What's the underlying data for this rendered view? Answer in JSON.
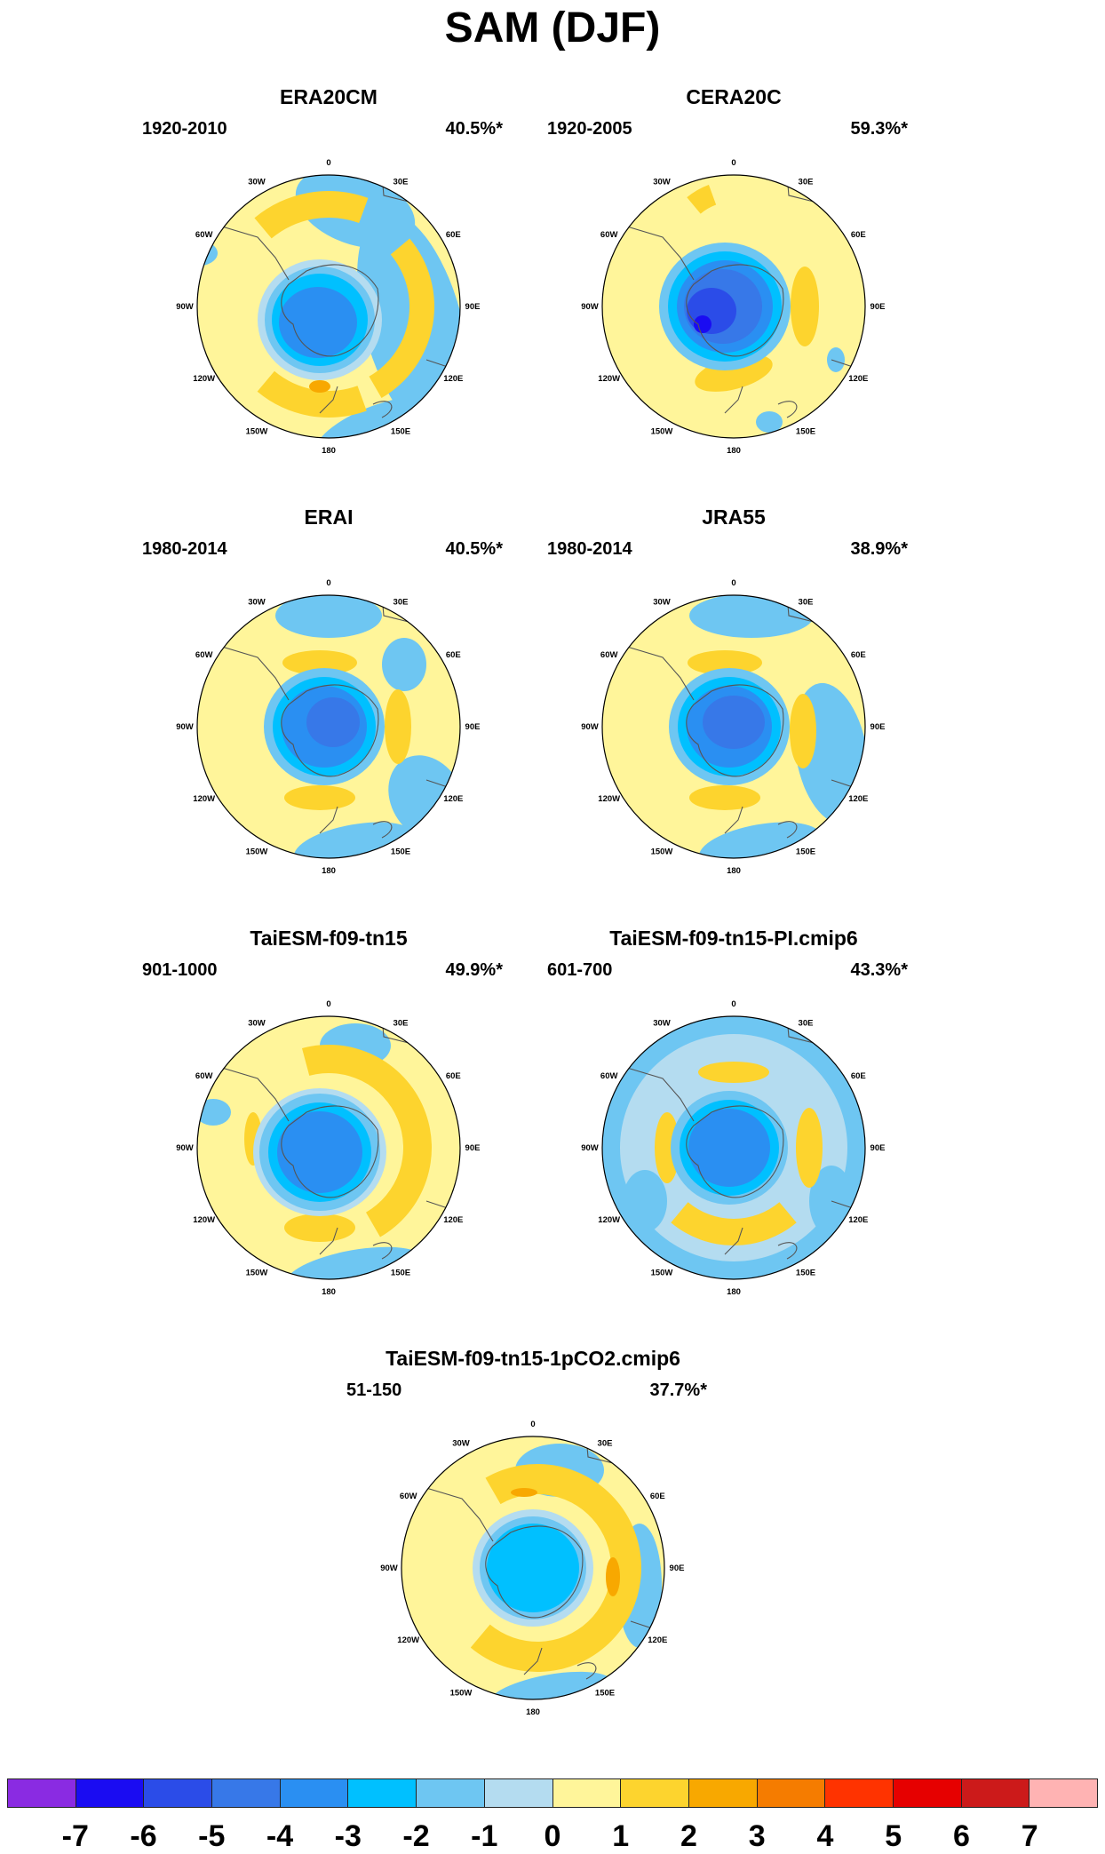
{
  "title": "SAM (DJF)",
  "lon_labels": [
    "0",
    "30E",
    "60E",
    "90E",
    "120E",
    "150E",
    "180",
    "150W",
    "120W",
    "90W",
    "60W",
    "30W"
  ],
  "panels": [
    {
      "title": "ERA20CM",
      "period": "1920-2010",
      "variance": "40.5%*",
      "pattern": "era20cm"
    },
    {
      "title": "CERA20C",
      "period": "1920-2005",
      "variance": "59.3%*",
      "pattern": "cera20c"
    },
    {
      "title": "ERAI",
      "period": "1980-2014",
      "variance": "40.5%*",
      "pattern": "erai"
    },
    {
      "title": "JRA55",
      "period": "1980-2014",
      "variance": "38.9%*",
      "pattern": "jra55"
    },
    {
      "title": "TaiESM-f09-tn15",
      "period": "901-1000",
      "variance": "49.9%*",
      "pattern": "taiesm"
    },
    {
      "title": "TaiESM-f09-tn15-PI.cmip6",
      "period": "601-700",
      "variance": "43.3%*",
      "pattern": "pi"
    },
    {
      "title": "TaiESM-f09-tn15-1pCO2.cmip6",
      "period": "51-150",
      "variance": "37.7%*",
      "pattern": "co2"
    }
  ],
  "colorbar": {
    "colors": [
      "#8a2be2",
      "#1a0cf2",
      "#2b4ce8",
      "#3778e8",
      "#2a8ff2",
      "#00c0ff",
      "#6ec6f2",
      "#b4dcf0",
      "#fff59a",
      "#fdd42e",
      "#f8a800",
      "#f57c00",
      "#ff3300",
      "#e60000",
      "#cc1a1a",
      "#ffb3b3"
    ],
    "labels": [
      "-7",
      "-6",
      "-5",
      "-4",
      "-3",
      "-2",
      "-1",
      "0",
      "1",
      "2",
      "3",
      "4",
      "5",
      "6",
      "7"
    ]
  }
}
